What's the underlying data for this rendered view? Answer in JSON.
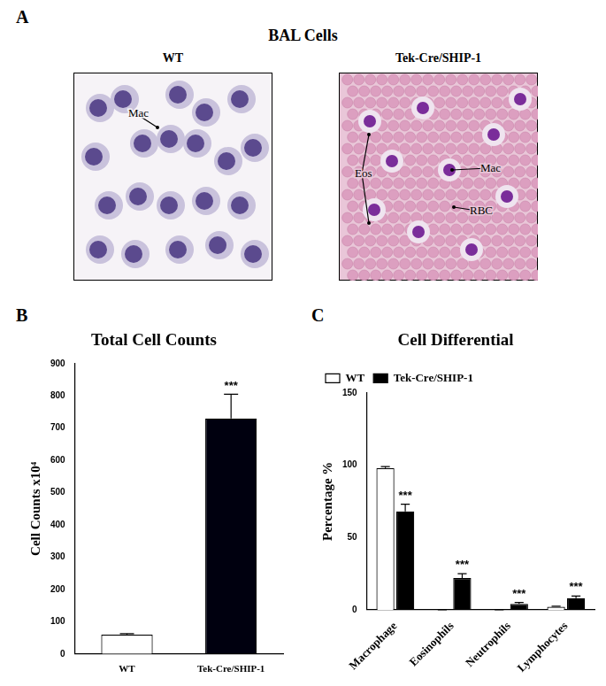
{
  "panel_a": {
    "panel_label": "A",
    "title": "BAL Cells",
    "images": [
      {
        "title": "WT",
        "annotations": [
          "Mac"
        ]
      },
      {
        "title": "Tek-Cre/SHIP-1",
        "annotations": [
          "Eos",
          "Mac",
          "RBC"
        ]
      }
    ]
  },
  "chart_data": [
    {
      "panel_label": "B",
      "type": "bar",
      "title": "Total Cell Counts",
      "y_label": "Cell Counts x10⁴",
      "categories": [
        "WT",
        "Tek-Cre/SHIP-1"
      ],
      "values": [
        60,
        730
      ],
      "errors": [
        3,
        75
      ],
      "significance": [
        null,
        "***"
      ],
      "colors": [
        "#ffffff",
        "#00000f"
      ],
      "ylim": [
        0,
        900
      ],
      "yticks": [
        0,
        100,
        200,
        300,
        400,
        500,
        600,
        700,
        800,
        900
      ],
      "grid": false
    },
    {
      "panel_label": "C",
      "type": "bar",
      "title": "Cell Differential",
      "y_label": "Percentage %",
      "categories": [
        "Macrophage",
        "Eosinophils",
        "Neutrophils",
        "Lymphocytes"
      ],
      "series": [
        {
          "name": "WT",
          "color": "#ffffff",
          "values": [
            98,
            0,
            0,
            2
          ],
          "errors": [
            1,
            0,
            0,
            0.5
          ]
        },
        {
          "name": "Tek-Cre/SHIP-1",
          "color": "#000000",
          "values": [
            68,
            22,
            4,
            8
          ],
          "errors": [
            5,
            3,
            1,
            1.5
          ],
          "significance": [
            "***",
            "***",
            "***",
            "***"
          ]
        }
      ],
      "ylim": [
        0,
        150
      ],
      "yticks": [
        0,
        50,
        100,
        150
      ],
      "grid": false,
      "legend": "top-left"
    }
  ]
}
